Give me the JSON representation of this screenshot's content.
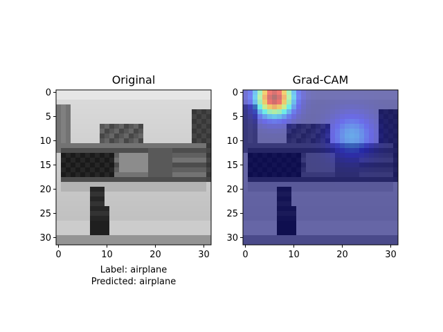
{
  "chart_data": [
    {
      "type": "heatmap",
      "title": "Original",
      "colormap": "grayscale",
      "xlim": [
        -0.5,
        31.5
      ],
      "ylim": [
        31.5,
        -0.5
      ],
      "xticks": [
        "0",
        "10",
        "20",
        "30"
      ],
      "yticks": [
        "0",
        "5",
        "10",
        "15",
        "20",
        "25",
        "30"
      ],
      "grid": false,
      "caption": [
        "Label: airplane",
        "Predicted: airplane"
      ]
    },
    {
      "type": "heatmap",
      "title": "Grad-CAM",
      "colormap": "jet overlay on grayscale image",
      "xlim": [
        -0.5,
        31.5
      ],
      "ylim": [
        31.5,
        -0.5
      ],
      "xticks": [
        "0",
        "10",
        "20",
        "30"
      ],
      "yticks": [
        "0",
        "5",
        "10",
        "15",
        "20",
        "25",
        "30"
      ],
      "grid": false,
      "hotspots": [
        {
          "x": 6,
          "y": 1,
          "level": 1.0
        },
        {
          "x": 22,
          "y": 9,
          "level": 0.25
        }
      ]
    }
  ]
}
